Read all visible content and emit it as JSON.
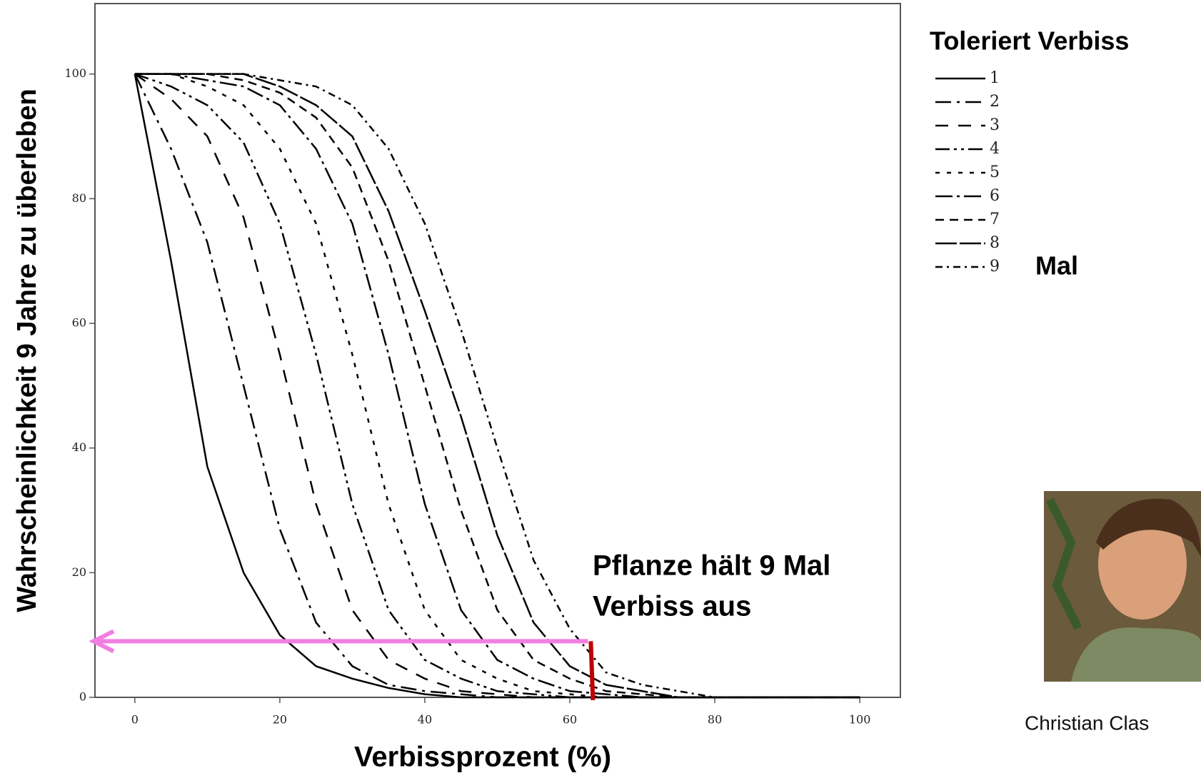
{
  "chart_data": {
    "type": "line",
    "x_label": "Verbissprozent (%)",
    "y_label": "Wahrscheinlichkeit 9 Jahre zu überleben",
    "legend_title": "Toleriert Verbiss",
    "legend_suffix": "Mal",
    "annotation": [
      "Pflanze hält 9 Mal",
      "Verbiss aus"
    ],
    "photo_caption": "Christian Clas",
    "highlight": {
      "x": 62.5,
      "y": 9
    },
    "xlim": [
      -5.5,
      105.6
    ],
    "ylim": [
      0,
      111.3
    ],
    "xticks": [
      0,
      20,
      40,
      60,
      80,
      100
    ],
    "yticks": [
      0,
      20,
      40,
      60,
      80,
      100
    ],
    "x": [
      0,
      5,
      10,
      15,
      20,
      25,
      30,
      35,
      40,
      45,
      50,
      55,
      60,
      65,
      70,
      75,
      80,
      85,
      90,
      95,
      100
    ],
    "series": [
      {
        "name": "1",
        "color": "#000000",
        "dash": "none",
        "values": [
          100,
          70,
          37,
          20,
          10,
          5,
          3,
          1.5,
          0.5,
          0,
          0,
          0,
          0,
          0,
          0,
          0,
          0,
          0,
          0,
          0,
          0
        ]
      },
      {
        "name": "2",
        "color": "#000000",
        "dash": "22 8 4 8",
        "values": [
          100,
          88,
          73,
          50,
          27,
          12,
          5,
          2,
          1,
          0.5,
          0,
          0,
          0,
          0,
          0,
          0,
          0,
          0,
          0,
          0,
          0
        ]
      },
      {
        "name": "3",
        "color": "#000000",
        "dash": "18 14",
        "values": [
          100,
          96,
          90,
          77,
          55,
          31,
          14,
          6,
          3,
          1,
          0.5,
          0,
          0,
          0,
          0,
          0,
          0,
          0,
          0,
          0,
          0
        ]
      },
      {
        "name": "4",
        "color": "#000000",
        "dash": "20 6 4 6 4 6",
        "values": [
          100,
          98,
          95,
          89,
          76,
          55,
          31,
          14,
          6,
          3,
          1,
          0.5,
          0,
          0,
          0,
          0,
          0,
          0,
          0,
          0,
          0
        ]
      },
      {
        "name": "5",
        "color": "#000000",
        "dash": "6 10",
        "values": [
          100,
          100,
          98,
          95,
          88,
          76,
          55,
          31,
          14,
          6,
          3,
          1,
          0.5,
          0,
          0,
          0,
          0,
          0,
          0,
          0,
          0
        ]
      },
      {
        "name": "6",
        "color": "#000000",
        "dash": "24 6 4 6",
        "values": [
          100,
          100,
          99,
          98,
          95,
          88,
          76,
          55,
          31,
          14,
          6,
          3,
          1,
          0.5,
          0,
          0,
          0,
          0,
          0,
          0,
          0
        ]
      },
      {
        "name": "7",
        "color": "#000000",
        "dash": "12 8",
        "values": [
          100,
          100,
          100,
          99,
          97,
          93,
          85,
          70,
          50,
          30,
          14,
          6,
          3,
          1,
          0.5,
          0,
          0,
          0,
          0,
          0,
          0
        ]
      },
      {
        "name": "8",
        "color": "#000000",
        "dash": "30 4",
        "values": [
          100,
          100,
          100,
          100,
          98,
          95,
          90,
          78,
          62,
          45,
          26,
          12,
          5,
          2,
          1,
          0,
          0,
          0,
          0,
          0,
          0
        ]
      },
      {
        "name": "9",
        "color": "#000000",
        "dash": "10 6 3 6",
        "values": [
          100,
          100,
          100,
          100,
          99,
          98,
          95,
          88,
          76,
          59,
          40,
          22,
          11,
          4,
          2,
          1,
          0,
          0,
          0,
          0,
          0
        ]
      }
    ]
  }
}
